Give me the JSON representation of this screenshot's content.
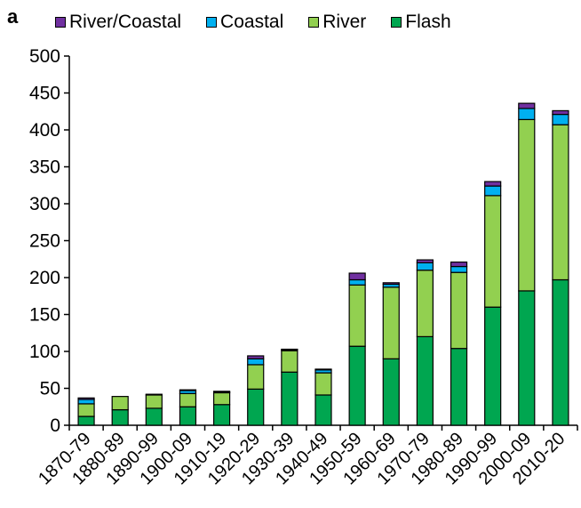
{
  "panel_label": "a",
  "colors": {
    "River/Coastal": "#7030A0",
    "Coastal": "#00B0F0",
    "River": "#92D050",
    "Flash": "#00A650"
  },
  "legend": [
    {
      "name": "River/Coastal"
    },
    {
      "name": "Coastal"
    },
    {
      "name": "River"
    },
    {
      "name": "Flash"
    }
  ],
  "chart_data": {
    "type": "bar",
    "stacked": true,
    "categories": [
      "1870-79",
      "1880-89",
      "1890-99",
      "1900-09",
      "1910-19",
      "1920-29",
      "1930-39",
      "1940-49",
      "1950-59",
      "1960-69",
      "1970-79",
      "1980-89",
      "1990-99",
      "2000-09",
      "2010-20"
    ],
    "series": [
      {
        "name": "Flash",
        "values": [
          12,
          21,
          23,
          25,
          28,
          49,
          72,
          41,
          107,
          90,
          120,
          104,
          160,
          182,
          197
        ]
      },
      {
        "name": "River",
        "values": [
          17,
          18,
          18,
          18,
          16,
          33,
          29,
          30,
          83,
          97,
          90,
          103,
          151,
          232,
          210
        ]
      },
      {
        "name": "Coastal",
        "values": [
          6,
          0,
          1,
          4,
          1,
          8,
          1,
          4,
          7,
          4,
          10,
          8,
          13,
          15,
          14
        ]
      },
      {
        "name": "River/Coastal",
        "values": [
          2,
          0,
          0,
          1,
          1,
          4,
          1,
          1,
          9,
          2,
          4,
          6,
          6,
          7,
          5
        ]
      }
    ],
    "ylim": [
      0,
      500
    ],
    "yticks": [
      0,
      50,
      100,
      150,
      200,
      250,
      300,
      350,
      400,
      450,
      500
    ],
    "title": "",
    "xlabel": "",
    "ylabel": "",
    "grid": false,
    "legend_position": "top"
  }
}
